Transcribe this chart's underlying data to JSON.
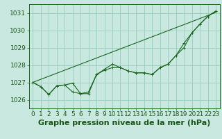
{
  "background_color": "#c8e8e0",
  "grid_color": "#99ccbb",
  "line_color": "#1a6620",
  "marker_color": "#1a6620",
  "title": "Graphe pression niveau de la mer (hPa)",
  "xlim": [
    -0.5,
    23.5
  ],
  "ylim": [
    1025.5,
    1031.5
  ],
  "yticks": [
    1026,
    1027,
    1028,
    1029,
    1030,
    1031
  ],
  "xticks": [
    0,
    1,
    2,
    3,
    4,
    5,
    6,
    7,
    8,
    9,
    10,
    11,
    12,
    13,
    14,
    15,
    16,
    17,
    18,
    19,
    20,
    21,
    22,
    23
  ],
  "title_fontsize": 8,
  "tick_fontsize": 6.5,
  "title_fontweight": "bold",
  "title_color": "#1a5518",
  "line1": [
    1027.0,
    1026.75,
    1026.3,
    1026.8,
    1026.85,
    1026.95,
    1026.35,
    1026.35,
    1027.45,
    1027.75,
    1028.05,
    1027.85,
    1027.65,
    1027.55,
    1027.55,
    1027.45,
    1027.85,
    1028.05,
    1028.55,
    1029.25,
    1029.85,
    1030.35,
    1030.8,
    1031.1
  ],
  "line2": [
    1027.0,
    1026.75,
    1026.3,
    1026.8,
    1026.85,
    1026.45,
    1026.35,
    1026.45,
    1027.45,
    1027.7,
    1027.85,
    1027.85,
    1027.65,
    1027.55,
    1027.55,
    1027.45,
    1027.85,
    1028.05,
    1028.55,
    1029.0,
    1029.85,
    1030.35,
    1030.8,
    1031.1
  ],
  "line3_straight": [
    1027.0,
    1027.175,
    1027.35,
    1027.525,
    1027.7,
    1027.875,
    1028.05,
    1028.225,
    1028.4,
    1028.575,
    1028.75,
    1028.925,
    1029.1,
    1029.275,
    1029.45,
    1029.625,
    1029.8,
    1029.975,
    1030.15,
    1030.325,
    1030.5,
    1030.675,
    1030.85,
    1031.025
  ]
}
